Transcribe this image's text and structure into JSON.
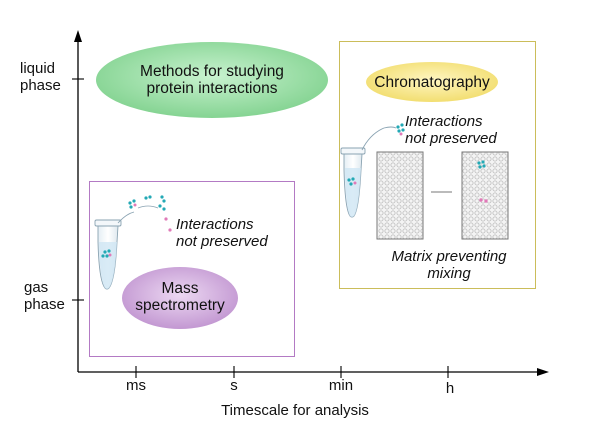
{
  "y_axis": {
    "top_label": [
      "liquid",
      "phase"
    ],
    "bottom_label": [
      "gas",
      "phase"
    ]
  },
  "x_axis": {
    "ticks": [
      "ms",
      "s",
      "min",
      "h"
    ],
    "title": "Timescale for analysis"
  },
  "title_bubble": [
    "Methods for studying",
    "protein interactions"
  ],
  "mass_spec": {
    "label": [
      "Mass",
      "spectrometry"
    ],
    "note": [
      "Interactions",
      "not preserved"
    ],
    "bubble_color": "#c9a3d6",
    "frame_color": "#b37ac4"
  },
  "chromatography": {
    "label": "Chromatography",
    "note": [
      "Interactions",
      "not preserved"
    ],
    "matrix_note": [
      "Matrix preventing",
      "mixing"
    ],
    "bubble_color": "#f3e07a",
    "frame_color": "#cbbd5a"
  },
  "colors": {
    "green_bubble": "#8ed99a",
    "protein_cyan": "#23a9b5",
    "protein_pink": "#e07ab8"
  }
}
